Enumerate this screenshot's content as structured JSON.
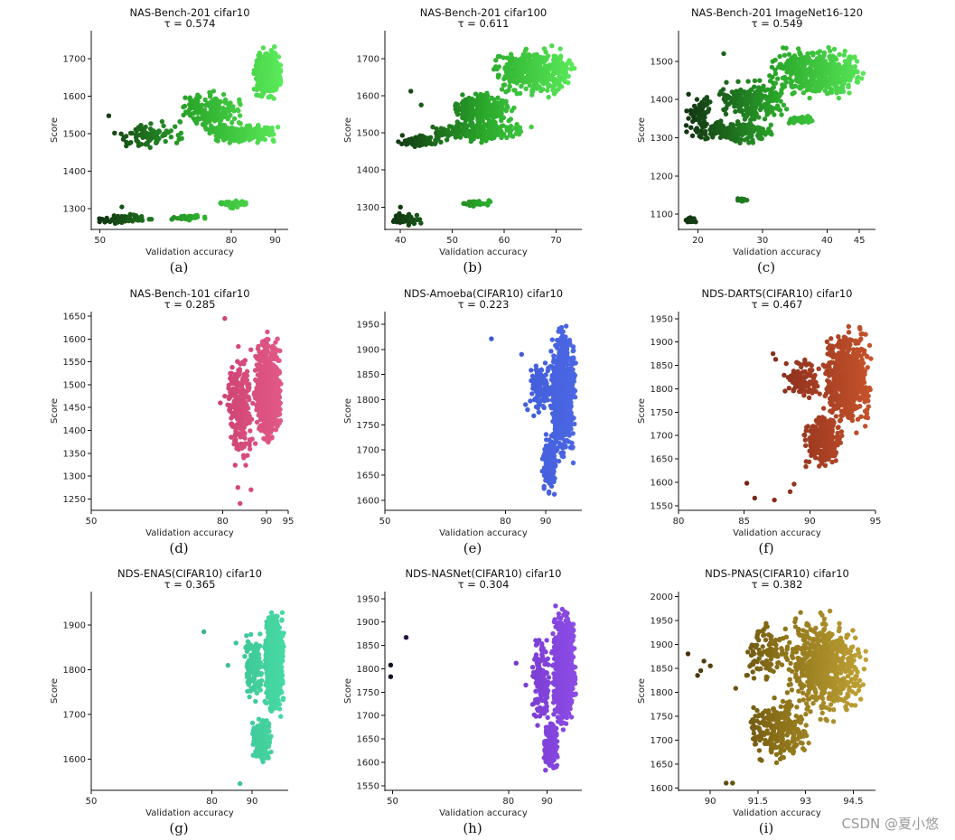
{
  "watermark": "CSDN @夏小悠",
  "chart_data": [
    {
      "type": "scatter",
      "caption": "(a)",
      "title": "NAS-Bench-201 cifar10",
      "tau_label": "τ = 0.574",
      "xlabel": "Validation accuracy",
      "ylabel": "Score",
      "xlim": [
        48,
        93
      ],
      "ylim": [
        1245,
        1775
      ],
      "xticks": [
        50,
        80,
        90
      ],
      "yticks": [
        1300,
        1400,
        1500,
        1600,
        1700
      ],
      "colors": [
        "#0f2a0f",
        "#2aa82a",
        "#5ef05e"
      ],
      "n_points": 1100,
      "seed": 11,
      "clusters": [
        {
          "x": [
            85,
            91.5
          ],
          "y": [
            1580,
            1740
          ],
          "w": 0.4
        },
        {
          "x": [
            68,
            83
          ],
          "y": [
            1500,
            1620
          ],
          "w": 0.18
        },
        {
          "x": [
            74,
            91
          ],
          "y": [
            1470,
            1530
          ],
          "w": 0.2
        },
        {
          "x": [
            53,
            70
          ],
          "y": [
            1450,
            1540
          ],
          "w": 0.08
        },
        {
          "x": [
            49,
            63
          ],
          "y": [
            1258,
            1290
          ],
          "w": 0.05
        },
        {
          "x": [
            64,
            75
          ],
          "y": [
            1265,
            1285
          ],
          "w": 0.03
        },
        {
          "x": [
            77,
            84
          ],
          "y": [
            1300,
            1325
          ],
          "w": 0.03
        }
      ],
      "outliers": [
        [
          52,
          1548
        ],
        [
          55,
          1305
        ]
      ]
    },
    {
      "type": "scatter",
      "caption": "(b)",
      "title": "NAS-Bench-201 cifar100",
      "tau_label": "τ = 0.611",
      "xlabel": "Validation accuracy",
      "ylabel": "Score",
      "xlim": [
        37,
        75
      ],
      "ylim": [
        1240,
        1775
      ],
      "xticks": [
        40,
        50,
        60,
        70
      ],
      "yticks": [
        1300,
        1400,
        1500,
        1600,
        1700
      ],
      "colors": [
        "#0f2a0f",
        "#2aa82a",
        "#5ef05e"
      ],
      "n_points": 1100,
      "seed": 22,
      "clusters": [
        {
          "x": [
            58,
            74
          ],
          "y": [
            1590,
            1740
          ],
          "w": 0.4
        },
        {
          "x": [
            50,
            62
          ],
          "y": [
            1510,
            1620
          ],
          "w": 0.2
        },
        {
          "x": [
            45,
            66
          ],
          "y": [
            1470,
            1540
          ],
          "w": 0.2
        },
        {
          "x": [
            39,
            48
          ],
          "y": [
            1455,
            1500
          ],
          "w": 0.07
        },
        {
          "x": [
            38,
            44
          ],
          "y": [
            1250,
            1285
          ],
          "w": 0.05
        },
        {
          "x": [
            52,
            58
          ],
          "y": [
            1300,
            1320
          ],
          "w": 0.03
        }
      ],
      "outliers": [
        [
          42,
          1612
        ],
        [
          44,
          1575
        ],
        [
          40,
          1300
        ]
      ]
    },
    {
      "type": "scatter",
      "caption": "(c)",
      "title": "NAS-Bench-201 ImageNet16-120",
      "tau_label": "τ = 0.549",
      "xlabel": "Validation accuracy",
      "ylabel": "Score",
      "xlim": [
        17,
        47.5
      ],
      "ylim": [
        1060,
        1580
      ],
      "xticks": [
        20,
        30,
        40,
        45
      ],
      "yticks": [
        1100,
        1200,
        1300,
        1400,
        1500
      ],
      "colors": [
        "#0f2a0f",
        "#2aa82a",
        "#5ef05e"
      ],
      "n_points": 1100,
      "seed": 33,
      "clusters": [
        {
          "x": [
            31,
            46
          ],
          "y": [
            1390,
            1550
          ],
          "w": 0.4
        },
        {
          "x": [
            23,
            34
          ],
          "y": [
            1330,
            1460
          ],
          "w": 0.2
        },
        {
          "x": [
            20,
            32
          ],
          "y": [
            1280,
            1350
          ],
          "w": 0.18
        },
        {
          "x": [
            18,
            22
          ],
          "y": [
            1280,
            1440
          ],
          "w": 0.07
        },
        {
          "x": [
            34,
            38
          ],
          "y": [
            1335,
            1360
          ],
          "w": 0.05
        },
        {
          "x": [
            18,
            20
          ],
          "y": [
            1075,
            1095
          ],
          "w": 0.03
        },
        {
          "x": [
            26,
            28
          ],
          "y": [
            1130,
            1145
          ],
          "w": 0.02
        }
      ],
      "outliers": [
        [
          24,
          1520
        ],
        [
          37,
          1520
        ]
      ]
    },
    {
      "type": "scatter",
      "caption": "(d)",
      "title": "NAS-Bench-101 cifar10",
      "tau_label": "τ = 0.285",
      "xlabel": "Validation accuracy",
      "ylabel": "Score",
      "xlim": [
        50,
        95
      ],
      "ylim": [
        1225,
        1660
      ],
      "xticks": [
        50,
        80,
        90,
        95
      ],
      "yticks": [
        1250,
        1300,
        1350,
        1400,
        1450,
        1500,
        1550,
        1600,
        1650
      ],
      "colors": [
        "#6e1233",
        "#c43866",
        "#e45b8a"
      ],
      "n_points": 1000,
      "seed": 44,
      "clusters": [
        {
          "x": [
            87,
            93.5
          ],
          "y": [
            1350,
            1630
          ],
          "w": 0.7
        },
        {
          "x": [
            81,
            87
          ],
          "y": [
            1300,
            1600
          ],
          "w": 0.25
        }
      ],
      "outliers": [
        [
          80.5,
          1645
        ],
        [
          79.5,
          1460
        ],
        [
          80.5,
          1475
        ],
        [
          83.5,
          1275
        ],
        [
          84,
          1240
        ],
        [
          86.5,
          1270
        ]
      ]
    },
    {
      "type": "scatter",
      "caption": "(e)",
      "title": "NDS-Amoeba(CIFAR10) cifar10",
      "tau_label": "τ = 0.223",
      "xlabel": "Validation accuracy",
      "ylabel": "Score",
      "xlim": [
        50,
        99
      ],
      "ylim": [
        1580,
        1975
      ],
      "xticks": [
        50,
        80,
        90
      ],
      "yticks": [
        1600,
        1650,
        1700,
        1750,
        1800,
        1850,
        1900,
        1950
      ],
      "colors": [
        "#1c2566",
        "#3b56cf",
        "#4d68e6"
      ],
      "n_points": 1000,
      "seed": 55,
      "clusters": [
        {
          "x": [
            91,
            97.5
          ],
          "y": [
            1660,
            1960
          ],
          "w": 0.7
        },
        {
          "x": [
            89,
            93
          ],
          "y": [
            1600,
            1750
          ],
          "w": 0.15
        },
        {
          "x": [
            86,
            91
          ],
          "y": [
            1760,
            1900
          ],
          "w": 0.1
        }
      ],
      "outliers": [
        [
          76.5,
          1921
        ],
        [
          84,
          1890
        ],
        [
          85,
          1790
        ],
        [
          85.5,
          1780
        ]
      ]
    },
    {
      "type": "scatter",
      "caption": "(f)",
      "title": "NDS-DARTS(CIFAR10) cifar10",
      "tau_label": "τ = 0.467",
      "xlabel": "Validation accuracy",
      "ylabel": "Score",
      "xlim": [
        80,
        95
      ],
      "ylim": [
        1540,
        1965
      ],
      "xticks": [
        80,
        85,
        90,
        95
      ],
      "yticks": [
        1550,
        1600,
        1650,
        1700,
        1750,
        1800,
        1850,
        1900,
        1950
      ],
      "colors": [
        "#3a1008",
        "#8a2e1c",
        "#c8552c"
      ],
      "n_points": 1000,
      "seed": 66,
      "clusters": [
        {
          "x": [
            91,
            94.8
          ],
          "y": [
            1700,
            1950
          ],
          "w": 0.6
        },
        {
          "x": [
            89.5,
            92.5
          ],
          "y": [
            1620,
            1760
          ],
          "w": 0.25
        },
        {
          "x": [
            88,
            91
          ],
          "y": [
            1760,
            1880
          ],
          "w": 0.1
        }
      ],
      "outliers": [
        [
          85.2,
          1598
        ],
        [
          85.8,
          1566
        ],
        [
          87.3,
          1562
        ],
        [
          87.2,
          1875
        ],
        [
          87.4,
          1863
        ],
        [
          88.5,
          1580
        ],
        [
          88.8,
          1596
        ]
      ]
    },
    {
      "type": "scatter",
      "caption": "(g)",
      "title": "NDS-ENAS(CIFAR10) cifar10",
      "tau_label": "τ = 0.365",
      "xlabel": "Validation accuracy",
      "ylabel": "Score",
      "xlim": [
        50,
        99
      ],
      "ylim": [
        1530,
        1975
      ],
      "xticks": [
        50,
        80,
        90
      ],
      "yticks": [
        1600,
        1700,
        1800,
        1900
      ],
      "colors": [
        "#165c48",
        "#34b088",
        "#48dca5"
      ],
      "n_points": 1000,
      "seed": 77,
      "clusters": [
        {
          "x": [
            93,
            98
          ],
          "y": [
            1680,
            1950
          ],
          "w": 0.65
        },
        {
          "x": [
            90,
            95
          ],
          "y": [
            1580,
            1700
          ],
          "w": 0.15
        },
        {
          "x": [
            88,
            93
          ],
          "y": [
            1720,
            1900
          ],
          "w": 0.15
        }
      ],
      "outliers": [
        [
          78,
          1885
        ],
        [
          84,
          1810
        ],
        [
          86,
          1860
        ],
        [
          87,
          1545
        ]
      ]
    },
    {
      "type": "scatter",
      "caption": "(h)",
      "title": "NDS-NASNet(CIFAR10) cifar10",
      "tau_label": "τ = 0.304",
      "xlabel": "Validation accuracy",
      "ylabel": "Score",
      "xlim": [
        48,
        99
      ],
      "ylim": [
        1540,
        1965
      ],
      "xticks": [
        50,
        80,
        90
      ],
      "yticks": [
        1550,
        1600,
        1650,
        1700,
        1750,
        1800,
        1850,
        1900,
        1950
      ],
      "colors": [
        "#140a22",
        "#6b2fc2",
        "#8e4ee8"
      ],
      "n_points": 1000,
      "seed": 88,
      "clusters": [
        {
          "x": [
            91,
            97.5
          ],
          "y": [
            1640,
            1950
          ],
          "w": 0.65
        },
        {
          "x": [
            89,
            93
          ],
          "y": [
            1570,
            1700
          ],
          "w": 0.15
        },
        {
          "x": [
            86,
            91
          ],
          "y": [
            1660,
            1880
          ],
          "w": 0.15
        }
      ],
      "outliers": [
        [
          49.5,
          1808
        ],
        [
          49.5,
          1783
        ],
        [
          53.5,
          1867
        ],
        [
          82,
          1812
        ],
        [
          84.5,
          1765
        ]
      ]
    },
    {
      "type": "scatter",
      "caption": "(i)",
      "title": "NDS-PNAS(CIFAR10) cifar10",
      "tau_label": "τ = 0.382",
      "xlabel": "Validation accuracy",
      "ylabel": "Score",
      "xlim": [
        89,
        95.2
      ],
      "ylim": [
        1595,
        2010
      ],
      "xticks": [
        90.0,
        91.5,
        93,
        94.5
      ],
      "yticks": [
        1600,
        1650,
        1700,
        1750,
        1800,
        1850,
        1900,
        1950,
        2000
      ],
      "colors": [
        "#3a2a08",
        "#8a7018",
        "#c6a838"
      ],
      "n_points": 1000,
      "seed": 99,
      "clusters": [
        {
          "x": [
            92.3,
            94.9
          ],
          "y": [
            1720,
            1985
          ],
          "w": 0.6
        },
        {
          "x": [
            91.2,
            93.2
          ],
          "y": [
            1640,
            1800
          ],
          "w": 0.25
        },
        {
          "x": [
            91,
            92.5
          ],
          "y": [
            1800,
            1960
          ],
          "w": 0.1
        }
      ],
      "outliers": [
        [
          89.3,
          1880
        ],
        [
          89.6,
          1835
        ],
        [
          89.7,
          1845
        ],
        [
          89.8,
          1865
        ],
        [
          90.0,
          1855
        ],
        [
          90.5,
          1610
        ],
        [
          90.7,
          1610
        ],
        [
          90.8,
          1808
        ]
      ]
    }
  ]
}
